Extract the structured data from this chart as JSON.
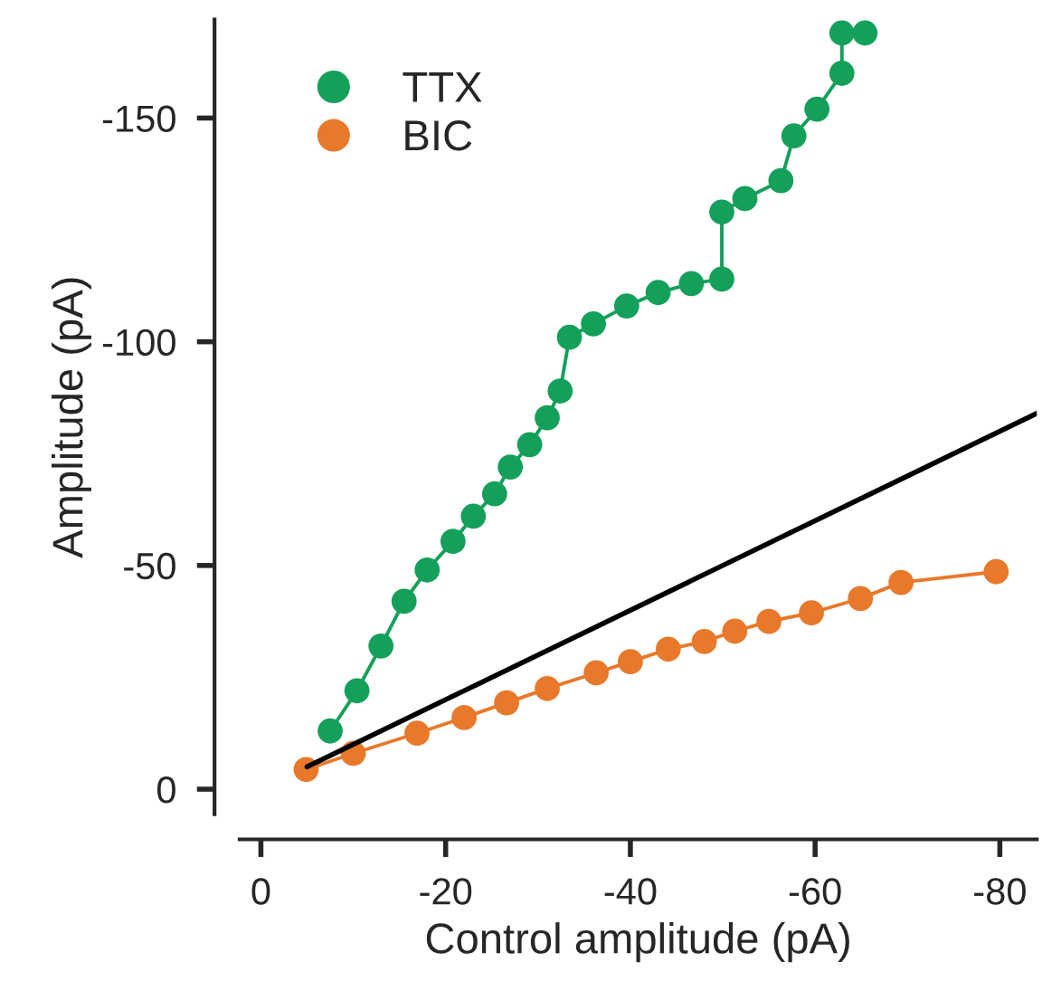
{
  "chart_data": {
    "type": "line",
    "xlabel": "Control amplitude (pA)",
    "ylabel": "Amplitude (pA)",
    "xlim": [
      2.3,
      -84
    ],
    "ylim": [
      5.6,
      -172
    ],
    "xticks": [
      0,
      -20,
      -40,
      -60,
      -80
    ],
    "yticks": [
      0,
      -50,
      -100,
      -150
    ],
    "marker": "circle",
    "legend": "top left",
    "grid": false,
    "series": [
      {
        "name": "TTX",
        "color": "#14a05a",
        "x": [
          -7.5,
          -10.4,
          -13,
          -15.5,
          -18,
          -20.8,
          -23,
          -25.3,
          -27,
          -29.1,
          -31,
          -32.4,
          -33.4,
          -36,
          -39.6,
          -43,
          -46.6,
          -49.9,
          -49.9,
          -52.4,
          -56.3,
          -57.7,
          -60.2,
          -62.9,
          -62.9,
          -65.4
        ],
        "values": [
          -13,
          -22,
          -32,
          -42,
          -49,
          -55.4,
          -61,
          -66,
          -72,
          -77,
          -83,
          -89,
          -101,
          -104,
          -108,
          -111,
          -113,
          -114,
          -129,
          -132,
          -136,
          -146,
          -152,
          -160,
          -169,
          -169
        ]
      },
      {
        "name": "BIC",
        "color": "#e8792a",
        "x": [
          -4.9,
          -10,
          -16.9,
          -22,
          -26.6,
          -31,
          -36.3,
          -40,
          -44.1,
          -48,
          -51.3,
          -55,
          -59.6,
          -64.9,
          -69.3,
          -79.6
        ],
        "values": [
          -4.4,
          -8,
          -12.5,
          -16,
          -19.3,
          -22.5,
          -26,
          -28.5,
          -31.3,
          -33,
          -35.3,
          -37.5,
          -39.4,
          -42.6,
          -46.2,
          -48.6
        ]
      },
      {
        "color": "#000000",
        "marker": "none",
        "x": [
          -5,
          -84
        ],
        "values": [
          -5,
          -84
        ]
      }
    ]
  }
}
